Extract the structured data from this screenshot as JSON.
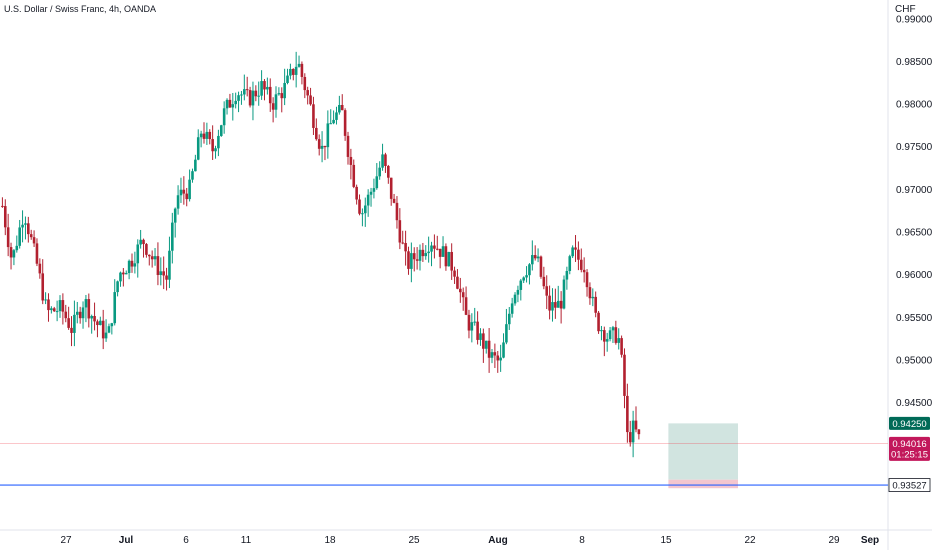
{
  "header": {
    "title": "U.S. Dollar / Swiss Franc, 4h, OANDA",
    "currency": "CHF"
  },
  "colors": {
    "up": "#089981",
    "down": "#b2202f",
    "blue_line": "#2962ff",
    "tp_box": "#c9dfdb",
    "sl_box": "#f4c6cf"
  },
  "chart_data": {
    "type": "candlestick",
    "title": "U.S. Dollar / Swiss Franc, 4h, OANDA",
    "ylabel": "CHF",
    "ylim": [
      0.93,
      0.9905
    ],
    "yticks": [
      "0.99000",
      "0.98500",
      "0.98000",
      "0.97500",
      "0.97000",
      "0.96500",
      "0.96000",
      "0.95500",
      "0.95000",
      "0.94500"
    ],
    "xticks": [
      {
        "label": "27",
        "day": -4
      },
      {
        "label": "Jul",
        "day": 1
      },
      {
        "label": "6",
        "day": 6
      },
      {
        "label": "11",
        "day": 11
      },
      {
        "label": "18",
        "day": 18
      },
      {
        "label": "25",
        "day": 25
      },
      {
        "label": "Aug",
        "day": 32
      },
      {
        "label": "8",
        "day": 39
      },
      {
        "label": "15",
        "day": 46
      },
      {
        "label": "22",
        "day": 53
      },
      {
        "label": "29",
        "day": 60
      },
      {
        "label": "Sep",
        "day": 63
      }
    ],
    "x_domain_days": [
      -9.5,
      64.5
    ],
    "bold_ticks": [
      "Jul",
      "Aug",
      "Sep"
    ],
    "close_series": [
      [
        -9.3,
        0.968
      ],
      [
        -8.5,
        0.9615
      ],
      [
        -7.5,
        0.9675
      ],
      [
        -6.4,
        0.961
      ],
      [
        -5.6,
        0.9555
      ],
      [
        -4.4,
        0.956
      ],
      [
        -3.5,
        0.9535
      ],
      [
        -2.5,
        0.957
      ],
      [
        -1.6,
        0.9545
      ],
      [
        -0.5,
        0.9525
      ],
      [
        0.4,
        0.96
      ],
      [
        1.4,
        0.9615
      ],
      [
        2.4,
        0.964
      ],
      [
        3.5,
        0.961
      ],
      [
        4.4,
        0.9595
      ],
      [
        5.2,
        0.969
      ],
      [
        6.3,
        0.97
      ],
      [
        7.3,
        0.977
      ],
      [
        8.2,
        0.9745
      ],
      [
        9.2,
        0.979
      ],
      [
        10.2,
        0.9815
      ],
      [
        11.2,
        0.9805
      ],
      [
        12.3,
        0.982
      ],
      [
        13.2,
        0.98
      ],
      [
        14.3,
        0.982
      ],
      [
        15.3,
        0.985
      ],
      [
        16.3,
        0.98
      ],
      [
        17.3,
        0.9745
      ],
      [
        18.3,
        0.9785
      ],
      [
        19.0,
        0.979
      ],
      [
        19.7,
        0.973
      ],
      [
        20.6,
        0.967
      ],
      [
        21.5,
        0.97
      ],
      [
        22.4,
        0.9735
      ],
      [
        23.4,
        0.9675
      ],
      [
        24.4,
        0.961
      ],
      [
        25.4,
        0.9625
      ],
      [
        26.4,
        0.964
      ],
      [
        27.4,
        0.9625
      ],
      [
        28.4,
        0.9605
      ],
      [
        29.4,
        0.9545
      ],
      [
        30.3,
        0.953
      ],
      [
        31.3,
        0.9505
      ],
      [
        32.2,
        0.9495
      ],
      [
        33.2,
        0.9575
      ],
      [
        34.2,
        0.9605
      ],
      [
        35.2,
        0.962
      ],
      [
        36.2,
        0.956
      ],
      [
        37.2,
        0.9565
      ],
      [
        38.2,
        0.9625
      ],
      [
        39.2,
        0.961
      ],
      [
        40.2,
        0.9545
      ],
      [
        41.2,
        0.9525
      ],
      [
        42.0,
        0.953
      ],
      [
        42.4,
        0.9485
      ],
      [
        42.8,
        0.9405
      ],
      [
        43.3,
        0.942
      ],
      [
        43.9,
        0.9402
      ]
    ],
    "horizontal_lines": [
      {
        "value": 0.94016,
        "label": "0.94016",
        "sublabel": "01:25:15",
        "color": "#f23645"
      },
      {
        "value": 0.93527,
        "label": "0.93527",
        "color": "#2962ff"
      }
    ],
    "current_price_label": {
      "value": 0.9425,
      "label": "0.94250"
    },
    "position_box": {
      "day_start": 46.2,
      "day_end": 52.0,
      "top": 0.9425,
      "entry": 0.9359,
      "bottom": 0.9349
    }
  }
}
